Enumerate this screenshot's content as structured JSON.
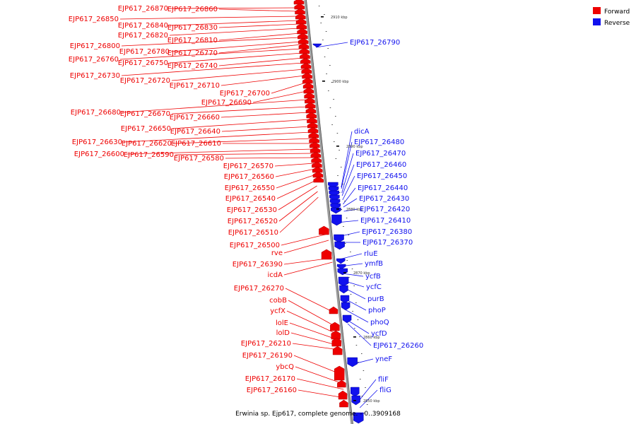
{
  "caption": "Erwinia sp. Ejp617, complete genome. - 0..3909168",
  "legend": [
    {
      "label": "Forward",
      "color": "#ee0000"
    },
    {
      "label": "Reverse",
      "color": "#1111ee"
    }
  ],
  "colors": {
    "forward": "#ee0000",
    "reverse": "#1111ee",
    "backbone": "#888888"
  },
  "ticks": [
    "2910 kbp",
    "2900 kbp",
    "2890 kbp",
    "2880 kbp",
    "2870 kbp",
    "2860 kbp",
    "2850 kbp"
  ],
  "forward_labels": [
    "EJP617_26870",
    "EJP617_26860",
    "EJP617_26850",
    "EJP617_26840",
    "EJP617_26830",
    "EJP617_26820",
    "EJP617_26810",
    "EJP617_26800",
    "EJP617_26780",
    "EJP617_26770",
    "EJP617_26760",
    "EJP617_26750",
    "EJP617_26740",
    "EJP617_26730",
    "EJP617_26720",
    "EJP617_26710",
    "EJP617_26700",
    "EJP617_26690",
    "EJP617_26680",
    "EJP617_26670",
    "EJP617_26660",
    "EJP617_26650",
    "EJP617_26640",
    "EJP617_26630",
    "EJP617_26620",
    "EJP617_26610",
    "EJP617_26600",
    "EJP617_26590",
    "EJP617_26580",
    "EJP617_26570",
    "EJP617_26560",
    "EJP617_26550",
    "EJP617_26540",
    "EJP617_26530",
    "EJP617_26520",
    "EJP617_26510",
    "EJP617_26500",
    "rve",
    "EJP617_26390",
    "icdA",
    "EJP617_26270",
    "cobB",
    "ycfX",
    "lolE",
    "lolD",
    "EJP617_26210",
    "EJP617_26190",
    "ybcQ",
    "EJP617_26170",
    "EJP617_26160"
  ],
  "reverse_labels": [
    "EJP617_26790",
    "dicA",
    "EJP617_26480",
    "EJP617_26470",
    "EJP617_26460",
    "EJP617_26450",
    "EJP617_26440",
    "EJP617_26430",
    "EJP617_26420",
    "EJP617_26410",
    "EJP617_26380",
    "EJP617_26370",
    "rluE",
    "ymfB",
    "ycfB",
    "ycfC",
    "purB",
    "phoP",
    "phoQ",
    "ycfD",
    "EJP617_26260",
    "yneF",
    "fliF",
    "fliG"
  ]
}
